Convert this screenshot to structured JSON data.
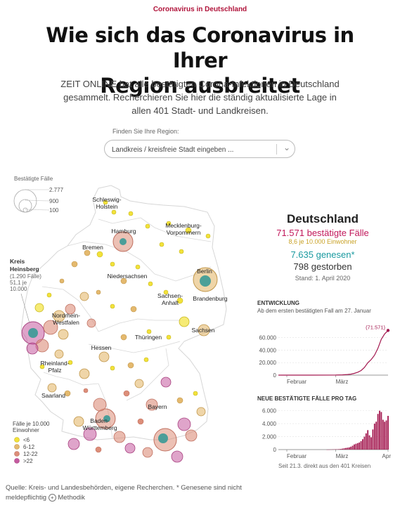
{
  "header": {
    "kicker": "Coronavirus in Deutschland",
    "title_line1": "Wie sich das Coronavirus in Ihrer",
    "title_line2": "Region ausbreitet",
    "intro": "ZEIT ONLINE hat alle bestätigten Corona-Infektionen in Deutschland gesammelt. Recherchieren Sie hier die ständig aktualisierte Lage in allen 401 Stadt- und Landkreisen."
  },
  "search": {
    "label": "Finden Sie Ihre Region:",
    "placeholder": "Landkreis / kreisfreie Stadt eingeben ..."
  },
  "map": {
    "size_legend": {
      "title": "Bestätigte Fälle",
      "items": [
        "2.777",
        "900",
        "100"
      ]
    },
    "callout": [
      "Kreis",
      "Heinsberg",
      "(1.290 Fälle)",
      "51,1 je",
      "10.000"
    ],
    "color_legend": {
      "title_line1": "Fälle je 10.000",
      "title_line2": "Einwohner",
      "items": [
        {
          "label": "<6",
          "color": "#f2e23a"
        },
        {
          "label": "6-12",
          "color": "#e4b96e"
        },
        {
          "label": "12-22",
          "color": "#dc8e79"
        },
        {
          "label": ">22",
          "color": "#c45a9f"
        }
      ]
    },
    "states": [
      {
        "name": "Schleswig-",
        "name2": "Holstein"
      },
      {
        "name": "Hamburg"
      },
      {
        "name": "Mecklenburg-",
        "name2": "Vorpommern"
      },
      {
        "name": "Bremen"
      },
      {
        "name": "Niedersachsen"
      },
      {
        "name": "Berlin"
      },
      {
        "name": "Brandenburg"
      },
      {
        "name": "Sachsen-",
        "name2": "Anhalt"
      },
      {
        "name": "Nordrhein-",
        "name2": "Westfalen"
      },
      {
        "name": "Sachsen"
      },
      {
        "name": "Thüringen"
      },
      {
        "name": "Hessen"
      },
      {
        "name": "Rheinland-",
        "name2": "Pfalz"
      },
      {
        "name": "Saarland"
      },
      {
        "name": "Bayern"
      },
      {
        "name": "Baden-",
        "name2": "Württemberg"
      }
    ]
  },
  "summary": {
    "title": "Deutschland",
    "cases": "71.571 bestätigte Fälle",
    "rate": "8,6 je 10.000 Einwohner",
    "recovered": "7.635 genesen*",
    "deaths": "798 gestorben",
    "date": "Stand: 1. April 2020"
  },
  "colors": {
    "accent": "#b0133a",
    "cases": "#c2185b",
    "recovered": "#1a9aa0",
    "rate": "#c9a227",
    "bar": "#a3184f",
    "teal": "#3a9a96"
  },
  "chart_data": [
    {
      "type": "line",
      "title": "ENTWICKLUNG",
      "subtitle": "Ab dem ersten bestätigten Fall am 27. Januar",
      "annotation": "71.571",
      "x_tick_labels": [
        "Februar",
        "März"
      ],
      "yticks": [
        "0",
        "20.000",
        "40.000",
        "60.000"
      ],
      "ylim": [
        0,
        72000
      ],
      "grid": true,
      "x_range": [
        "2020-01-27",
        "2020-04-01"
      ],
      "x": [
        "2020-01-27",
        "2020-02-15",
        "2020-03-01",
        "2020-03-05",
        "2020-03-08",
        "2020-03-10",
        "2020-03-12",
        "2020-03-14",
        "2020-03-16",
        "2020-03-18",
        "2020-03-20",
        "2020-03-22",
        "2020-03-24",
        "2020-03-26",
        "2020-03-28",
        "2020-03-30",
        "2020-04-01"
      ],
      "values": [
        0,
        16,
        130,
        480,
        1000,
        1600,
        2800,
        4600,
        7300,
        12300,
        19800,
        24900,
        32000,
        43000,
        57500,
        66000,
        71571
      ]
    },
    {
      "type": "bar",
      "title": "NEUE BESTÄTIGTE FÄLLE PRO TAG",
      "note": "Seit 21.3. direkt aus den 401 Kreisen",
      "x_tick_labels": [
        "Februar",
        "März",
        "Apr"
      ],
      "yticks": [
        "0",
        "2.000",
        "4.000",
        "6.000"
      ],
      "ylim": [
        0,
        6500
      ],
      "grid": true,
      "x_range": [
        "2020-01-27",
        "2020-04-01"
      ],
      "categories": [
        "2020-02-25",
        "2020-02-26",
        "2020-02-27",
        "2020-02-28",
        "2020-02-29",
        "2020-03-01",
        "2020-03-02",
        "2020-03-03",
        "2020-03-04",
        "2020-03-05",
        "2020-03-06",
        "2020-03-07",
        "2020-03-08",
        "2020-03-09",
        "2020-03-10",
        "2020-03-11",
        "2020-03-12",
        "2020-03-13",
        "2020-03-14",
        "2020-03-15",
        "2020-03-16",
        "2020-03-17",
        "2020-03-18",
        "2020-03-19",
        "2020-03-20",
        "2020-03-21",
        "2020-03-22",
        "2020-03-23",
        "2020-03-24",
        "2020-03-25",
        "2020-03-26",
        "2020-03-27",
        "2020-03-28",
        "2020-03-29",
        "2020-03-30",
        "2020-03-31",
        "2020-04-01"
      ],
      "values": [
        5,
        10,
        20,
        30,
        40,
        60,
        50,
        80,
        100,
        150,
        200,
        250,
        300,
        350,
        450,
        600,
        800,
        900,
        1000,
        1100,
        1300,
        1600,
        2000,
        2500,
        3000,
        2200,
        1900,
        3100,
        4000,
        4300,
        5500,
        6000,
        5800,
        4600,
        4300,
        4500,
        5200
      ]
    }
  ]
}
